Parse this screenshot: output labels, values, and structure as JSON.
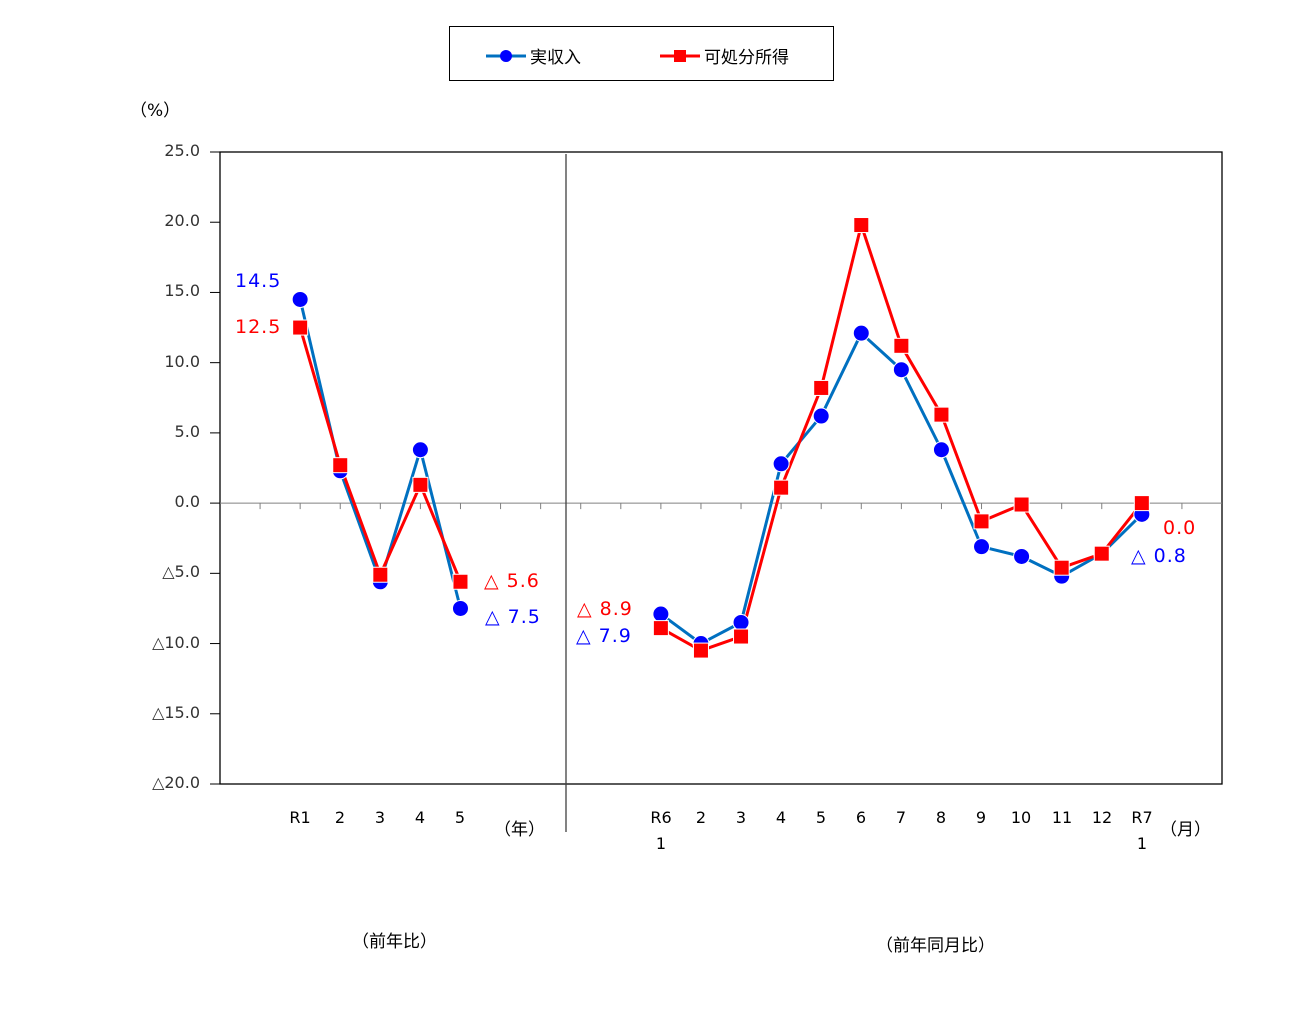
{
  "legend": {
    "series1": "実収入",
    "series2": "可処分所得"
  },
  "colors": {
    "series1_line": "#0070C0",
    "series1_marker": "#0000FF",
    "series2_line": "#FF0000",
    "series2_marker": "#FF0000",
    "label_blue": "#0000FF",
    "label_red": "#FF0000"
  },
  "axis": {
    "y_unit": "（%）",
    "y_ticks": [
      "25.0",
      "20.0",
      "15.0",
      "10.0",
      "5.0",
      "0.0",
      "△5.0",
      "△10.0",
      "△15.0",
      "△20.0"
    ],
    "annual_unit": "（年）",
    "monthly_unit": "（月）",
    "annual_caption": "（前年比）",
    "monthly_caption": "（前年同月比）"
  },
  "annual": {
    "categories": [
      "R1",
      "2",
      "3",
      "4",
      "5"
    ],
    "labels": {
      "s1_first": "14.5",
      "s2_first": "12.5",
      "s2_last": "△ 5.6",
      "s1_last": "△ 7.5"
    }
  },
  "monthly": {
    "categories": [
      "R6",
      "2",
      "3",
      "4",
      "5",
      "6",
      "7",
      "8",
      "9",
      "10",
      "11",
      "12",
      "R7"
    ],
    "sub_categories": [
      "1",
      "",
      "",
      "",
      "",
      "",
      "",
      "",
      "",
      "",
      "",
      "",
      "1"
    ],
    "labels": {
      "s2_first": "△ 8.9",
      "s1_first": "△ 7.9",
      "s2_last": "0.0",
      "s1_last": "△ 0.8"
    }
  },
  "chart_data": {
    "type": "line",
    "title": "",
    "ylabel": "（%）",
    "ylim": [
      -20,
      25
    ],
    "y_ticks": [
      25,
      20,
      15,
      10,
      5,
      0,
      -5,
      -10,
      -15,
      -20
    ],
    "negative_prefix": "△",
    "grid": false,
    "legend_position": "top",
    "panels": [
      {
        "name": "前年比",
        "xlabel": "（年）",
        "categories": [
          "R1",
          "2",
          "3",
          "4",
          "5"
        ],
        "series": [
          {
            "name": "実収入",
            "values": [
              14.5,
              2.3,
              -5.6,
              3.8,
              -7.5
            ]
          },
          {
            "name": "可処分所得",
            "values": [
              12.5,
              2.7,
              -5.1,
              1.3,
              -5.6
            ]
          }
        ]
      },
      {
        "name": "前年同月比",
        "xlabel": "（月）",
        "categories": [
          "R6 1",
          "2",
          "3",
          "4",
          "5",
          "6",
          "7",
          "8",
          "9",
          "10",
          "11",
          "12",
          "R7 1"
        ],
        "series": [
          {
            "name": "実収入",
            "values": [
              -7.9,
              -10.0,
              -8.5,
              2.8,
              6.2,
              12.1,
              9.5,
              3.8,
              -3.1,
              -3.8,
              -5.2,
              -3.6,
              -0.8
            ]
          },
          {
            "name": "可処分所得",
            "values": [
              -8.9,
              -10.5,
              -9.5,
              1.1,
              8.2,
              19.8,
              11.2,
              6.3,
              -1.3,
              -0.1,
              -4.6,
              -3.6,
              0.0
            ]
          }
        ]
      }
    ],
    "annotations": [
      "14.5",
      "12.5",
      "△ 5.6",
      "△ 7.5",
      "△ 8.9",
      "△ 7.9",
      "0.0",
      "△ 0.8"
    ]
  }
}
